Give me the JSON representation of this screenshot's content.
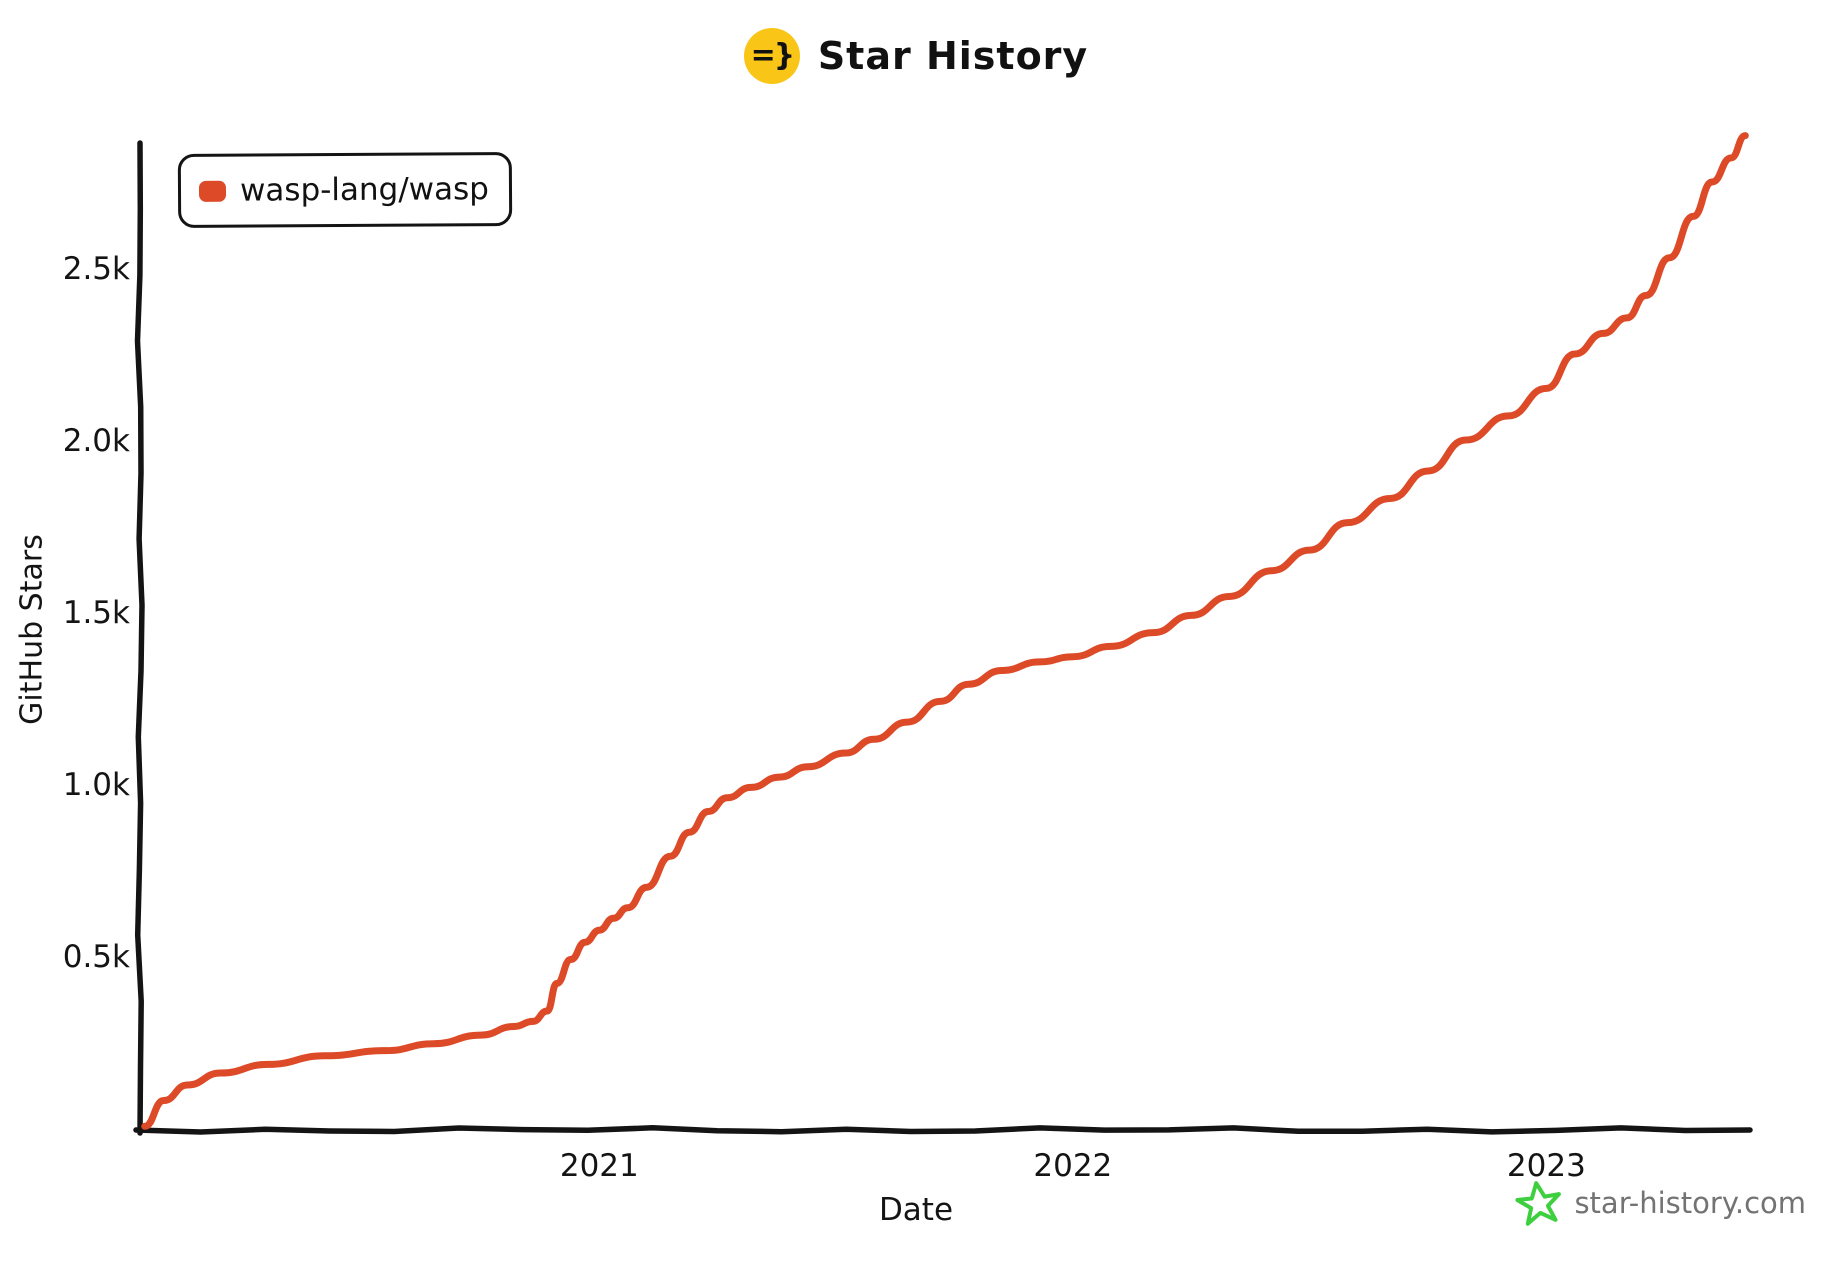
{
  "header": {
    "icon_text": "=}",
    "icon_bg": "#f9c516",
    "title": "Star History"
  },
  "legend": {
    "series_label": "wasp-lang/wasp",
    "marker_color": "#dd4a28"
  },
  "watermark": {
    "text": "star-history.com",
    "star_color": "#3ecf3e",
    "text_color": "#737373"
  },
  "chart_data": {
    "type": "line",
    "title": "Star History",
    "xlabel": "Date",
    "ylabel": "GitHub Stars",
    "grid": false,
    "legend_position": "top-left",
    "line_color": "#dd4a28",
    "axis_color": "#141414",
    "xlim": [
      2020.03,
      2023.43
    ],
    "ylim": [
      0,
      2950
    ],
    "x_ticks": [
      {
        "value": 2021,
        "label": "2021"
      },
      {
        "value": 2022,
        "label": "2022"
      },
      {
        "value": 2023,
        "label": "2023"
      }
    ],
    "y_ticks": [
      {
        "value": 500,
        "label": "0.5k"
      },
      {
        "value": 1000,
        "label": "1.0k"
      },
      {
        "value": 1500,
        "label": "1.5k"
      },
      {
        "value": 2000,
        "label": "2.0k"
      },
      {
        "value": 2500,
        "label": "2.5k"
      }
    ],
    "series": [
      {
        "name": "wasp-lang/wasp",
        "color": "#dd4a28",
        "points": [
          [
            2020.04,
            5
          ],
          [
            2020.08,
            80
          ],
          [
            2020.13,
            125
          ],
          [
            2020.2,
            160
          ],
          [
            2020.3,
            185
          ],
          [
            2020.42,
            210
          ],
          [
            2020.55,
            225
          ],
          [
            2020.65,
            245
          ],
          [
            2020.75,
            270
          ],
          [
            2020.82,
            295
          ],
          [
            2020.86,
            310
          ],
          [
            2020.89,
            340
          ],
          [
            2020.91,
            420
          ],
          [
            2020.94,
            490
          ],
          [
            2020.97,
            540
          ],
          [
            2021.0,
            575
          ],
          [
            2021.03,
            610
          ],
          [
            2021.06,
            640
          ],
          [
            2021.1,
            700
          ],
          [
            2021.15,
            790
          ],
          [
            2021.19,
            860
          ],
          [
            2021.23,
            920
          ],
          [
            2021.27,
            960
          ],
          [
            2021.32,
            990
          ],
          [
            2021.38,
            1020
          ],
          [
            2021.44,
            1050
          ],
          [
            2021.52,
            1090
          ],
          [
            2021.58,
            1130
          ],
          [
            2021.65,
            1180
          ],
          [
            2021.72,
            1240
          ],
          [
            2021.78,
            1290
          ],
          [
            2021.85,
            1330
          ],
          [
            2021.93,
            1355
          ],
          [
            2022.0,
            1370
          ],
          [
            2022.08,
            1400
          ],
          [
            2022.17,
            1440
          ],
          [
            2022.25,
            1490
          ],
          [
            2022.33,
            1545
          ],
          [
            2022.42,
            1620
          ],
          [
            2022.5,
            1680
          ],
          [
            2022.58,
            1760
          ],
          [
            2022.67,
            1830
          ],
          [
            2022.75,
            1910
          ],
          [
            2022.83,
            2000
          ],
          [
            2022.92,
            2070
          ],
          [
            2023.0,
            2150
          ],
          [
            2023.06,
            2250
          ],
          [
            2023.12,
            2310
          ],
          [
            2023.17,
            2355
          ],
          [
            2023.21,
            2420
          ],
          [
            2023.26,
            2530
          ],
          [
            2023.31,
            2650
          ],
          [
            2023.35,
            2750
          ],
          [
            2023.39,
            2820
          ],
          [
            2023.42,
            2885
          ]
        ]
      }
    ]
  }
}
